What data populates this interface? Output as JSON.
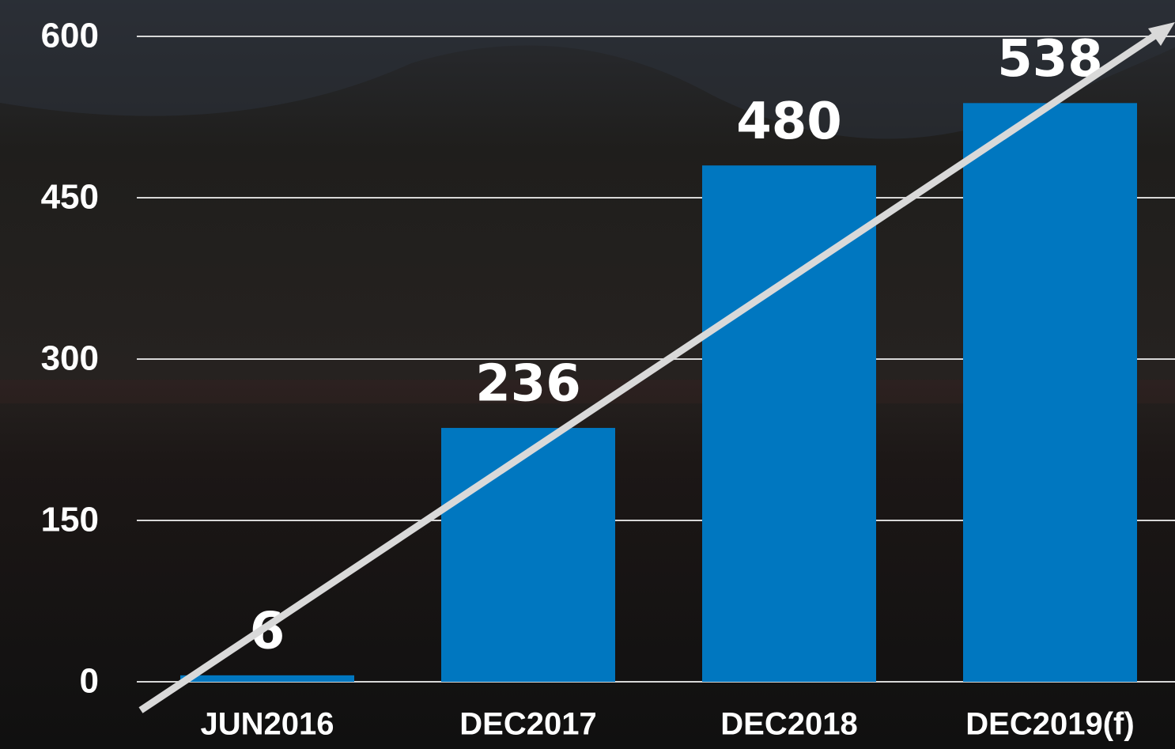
{
  "chart_data": {
    "type": "bar",
    "categories": [
      "JUN2016",
      "DEC2017",
      "DEC2018",
      "DEC2019(f)"
    ],
    "values": [
      6,
      236,
      480,
      538
    ],
    "color": "#0077c0",
    "ylim": [
      0,
      600
    ],
    "yticks": [
      0,
      150,
      300,
      450,
      600
    ],
    "grid": true
  }
}
